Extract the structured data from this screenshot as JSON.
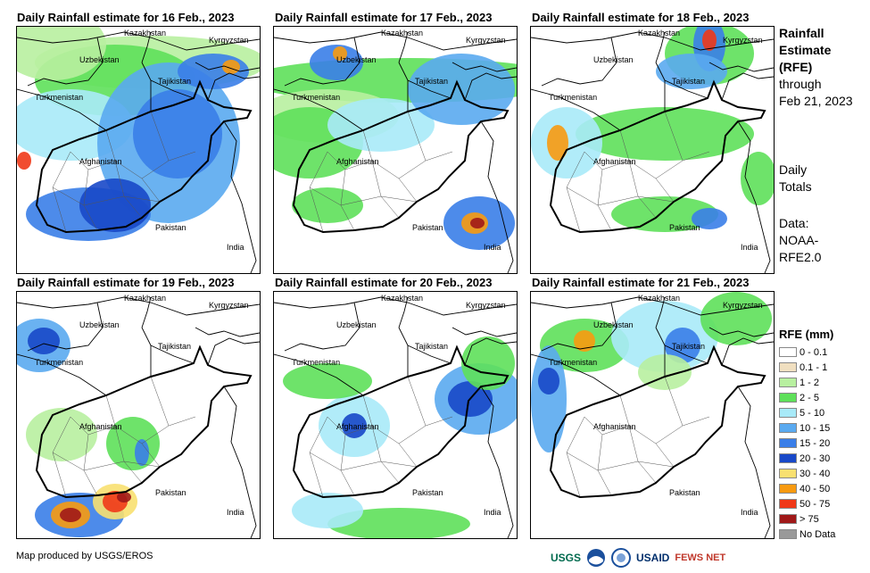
{
  "panels": [
    {
      "title": "Daily Rainfall estimate for 16 Feb., 2023"
    },
    {
      "title": "Daily Rainfall estimate for 17 Feb., 2023"
    },
    {
      "title": "Daily Rainfall estimate for 18 Feb., 2023"
    },
    {
      "title": "Daily Rainfall estimate for 19 Feb., 2023"
    },
    {
      "title": "Daily Rainfall estimate for 20 Feb., 2023"
    },
    {
      "title": "Daily Rainfall estimate for 21 Feb., 2023"
    }
  ],
  "map_labels": {
    "kazakhstan": "Kazakhstan",
    "kyrgyzstan": "Kyrgyzstan",
    "uzbekistan": "Uzbekistan",
    "tajikistan": "Tajikistan",
    "turkmenistan": "Turkmenistan",
    "afghanistan": "Afghanistan",
    "pakistan": "Pakistan",
    "india": "India"
  },
  "side_info": {
    "line1": "Rainfall",
    "line2": "Estimate",
    "line3": "(RFE)",
    "line4": "through",
    "line5": "Feb 21, 2023",
    "daily1": "Daily",
    "daily2": "Totals",
    "data1": "Data:",
    "data2": "NOAA-",
    "data3": "RFE2.0"
  },
  "legend": {
    "title": "RFE (mm)",
    "items": [
      {
        "label": "0 - 0.1",
        "color": "#ffffff"
      },
      {
        "label": "0.1 - 1",
        "color": "#f0dfc0"
      },
      {
        "label": "1 - 2",
        "color": "#b8f0a0"
      },
      {
        "label": "2 - 5",
        "color": "#5ee05a"
      },
      {
        "label": "5 - 10",
        "color": "#a8eaf8"
      },
      {
        "label": "10 - 15",
        "color": "#5aaaf0"
      },
      {
        "label": "15 - 20",
        "color": "#3a7ee8"
      },
      {
        "label": "20 - 30",
        "color": "#1848c8"
      },
      {
        "label": "30 - 40",
        "color": "#f8e070"
      },
      {
        "label": "40 - 50",
        "color": "#f89a10"
      },
      {
        "label": "50 - 75",
        "color": "#f03818"
      },
      {
        "label": "> 75",
        "color": "#a01818"
      },
      {
        "label": "No Data",
        "color": "#999999"
      }
    ]
  },
  "credit": "Map produced by USGS/EROS",
  "logos": {
    "usgs": "USGS",
    "usaid": "USAID",
    "fewsnet": "FEWS NET"
  }
}
